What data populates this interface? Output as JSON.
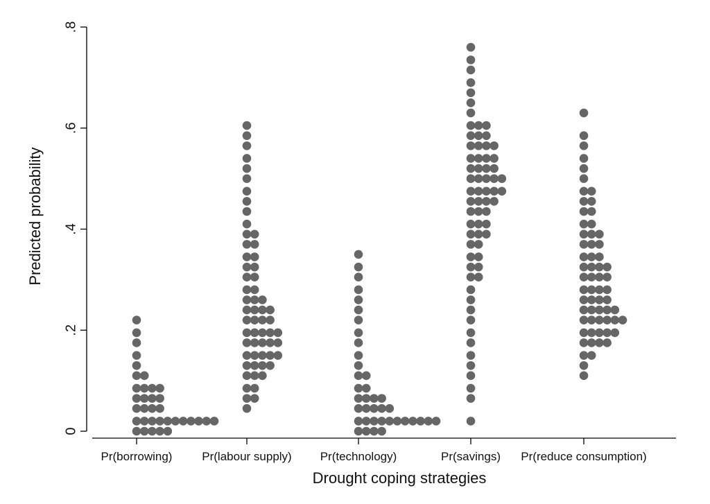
{
  "chart_data": {
    "type": "dotplot",
    "title": "",
    "xlabel": "Drought coping strategies",
    "ylabel": "Predicted probability",
    "ylim": [
      0,
      0.8
    ],
    "yticks": [
      0,
      0.2,
      0.4,
      0.6,
      0.8
    ],
    "ytick_labels": [
      "0",
      ".2",
      ".4",
      ".6",
      ".8"
    ],
    "grid": false,
    "legend": "none",
    "dot_color": "#666666",
    "categories": [
      "Pr(borrowing)",
      "Pr(labour supply)",
      "Pr(technology)",
      "Pr(savings)",
      "Pr(reduce consumption)"
    ],
    "series": [
      {
        "category": "Pr(borrowing)",
        "bins": [
          {
            "y": 0.0,
            "count": 5
          },
          {
            "y": 0.02,
            "count": 11
          },
          {
            "y": 0.045,
            "count": 4
          },
          {
            "y": 0.065,
            "count": 4
          },
          {
            "y": 0.085,
            "count": 4
          },
          {
            "y": 0.11,
            "count": 2
          },
          {
            "y": 0.13,
            "count": 1
          },
          {
            "y": 0.15,
            "count": 1
          },
          {
            "y": 0.175,
            "count": 1
          },
          {
            "y": 0.195,
            "count": 1
          },
          {
            "y": 0.22,
            "count": 1
          }
        ]
      },
      {
        "category": "Pr(labour supply)",
        "bins": [
          {
            "y": 0.045,
            "count": 1
          },
          {
            "y": 0.065,
            "count": 2
          },
          {
            "y": 0.085,
            "count": 2
          },
          {
            "y": 0.11,
            "count": 3
          },
          {
            "y": 0.13,
            "count": 4
          },
          {
            "y": 0.15,
            "count": 5
          },
          {
            "y": 0.175,
            "count": 5
          },
          {
            "y": 0.195,
            "count": 5
          },
          {
            "y": 0.22,
            "count": 4
          },
          {
            "y": 0.24,
            "count": 4
          },
          {
            "y": 0.26,
            "count": 3
          },
          {
            "y": 0.28,
            "count": 2
          },
          {
            "y": 0.305,
            "count": 2
          },
          {
            "y": 0.325,
            "count": 2
          },
          {
            "y": 0.345,
            "count": 2
          },
          {
            "y": 0.37,
            "count": 2
          },
          {
            "y": 0.39,
            "count": 2
          },
          {
            "y": 0.41,
            "count": 1
          },
          {
            "y": 0.435,
            "count": 1
          },
          {
            "y": 0.455,
            "count": 1
          },
          {
            "y": 0.475,
            "count": 1
          },
          {
            "y": 0.5,
            "count": 1
          },
          {
            "y": 0.52,
            "count": 1
          },
          {
            "y": 0.54,
            "count": 1
          },
          {
            "y": 0.565,
            "count": 1
          },
          {
            "y": 0.585,
            "count": 1
          },
          {
            "y": 0.605,
            "count": 1
          }
        ]
      },
      {
        "category": "Pr(technology)",
        "bins": [
          {
            "y": 0.0,
            "count": 4
          },
          {
            "y": 0.02,
            "count": 11
          },
          {
            "y": 0.045,
            "count": 5
          },
          {
            "y": 0.065,
            "count": 4
          },
          {
            "y": 0.085,
            "count": 2
          },
          {
            "y": 0.11,
            "count": 2
          },
          {
            "y": 0.13,
            "count": 1
          },
          {
            "y": 0.15,
            "count": 1
          },
          {
            "y": 0.175,
            "count": 1
          },
          {
            "y": 0.195,
            "count": 1
          },
          {
            "y": 0.22,
            "count": 1
          },
          {
            "y": 0.24,
            "count": 1
          },
          {
            "y": 0.26,
            "count": 1
          },
          {
            "y": 0.28,
            "count": 1
          },
          {
            "y": 0.305,
            "count": 1
          },
          {
            "y": 0.325,
            "count": 1
          },
          {
            "y": 0.35,
            "count": 1
          }
        ]
      },
      {
        "category": "Pr(savings)",
        "bins": [
          {
            "y": 0.02,
            "count": 1
          },
          {
            "y": 0.065,
            "count": 1
          },
          {
            "y": 0.085,
            "count": 1
          },
          {
            "y": 0.11,
            "count": 1
          },
          {
            "y": 0.13,
            "count": 1
          },
          {
            "y": 0.15,
            "count": 1
          },
          {
            "y": 0.175,
            "count": 1
          },
          {
            "y": 0.195,
            "count": 1
          },
          {
            "y": 0.22,
            "count": 1
          },
          {
            "y": 0.24,
            "count": 1
          },
          {
            "y": 0.26,
            "count": 1
          },
          {
            "y": 0.28,
            "count": 1
          },
          {
            "y": 0.305,
            "count": 2
          },
          {
            "y": 0.325,
            "count": 2
          },
          {
            "y": 0.345,
            "count": 2
          },
          {
            "y": 0.37,
            "count": 2
          },
          {
            "y": 0.39,
            "count": 3
          },
          {
            "y": 0.41,
            "count": 3
          },
          {
            "y": 0.435,
            "count": 3
          },
          {
            "y": 0.455,
            "count": 4
          },
          {
            "y": 0.475,
            "count": 5
          },
          {
            "y": 0.5,
            "count": 5
          },
          {
            "y": 0.52,
            "count": 4
          },
          {
            "y": 0.54,
            "count": 4
          },
          {
            "y": 0.565,
            "count": 4
          },
          {
            "y": 0.585,
            "count": 3
          },
          {
            "y": 0.605,
            "count": 3
          },
          {
            "y": 0.63,
            "count": 1
          },
          {
            "y": 0.65,
            "count": 1
          },
          {
            "y": 0.67,
            "count": 1
          },
          {
            "y": 0.69,
            "count": 1
          },
          {
            "y": 0.715,
            "count": 1
          },
          {
            "y": 0.735,
            "count": 1
          },
          {
            "y": 0.76,
            "count": 1
          }
        ]
      },
      {
        "category": "Pr(reduce consumption)",
        "bins": [
          {
            "y": 0.11,
            "count": 1
          },
          {
            "y": 0.13,
            "count": 1
          },
          {
            "y": 0.15,
            "count": 2
          },
          {
            "y": 0.175,
            "count": 4
          },
          {
            "y": 0.195,
            "count": 5
          },
          {
            "y": 0.22,
            "count": 6
          },
          {
            "y": 0.24,
            "count": 5
          },
          {
            "y": 0.26,
            "count": 4
          },
          {
            "y": 0.28,
            "count": 4
          },
          {
            "y": 0.305,
            "count": 4
          },
          {
            "y": 0.325,
            "count": 4
          },
          {
            "y": 0.345,
            "count": 3
          },
          {
            "y": 0.37,
            "count": 3
          },
          {
            "y": 0.39,
            "count": 3
          },
          {
            "y": 0.41,
            "count": 2
          },
          {
            "y": 0.435,
            "count": 2
          },
          {
            "y": 0.455,
            "count": 2
          },
          {
            "y": 0.475,
            "count": 2
          },
          {
            "y": 0.5,
            "count": 1
          },
          {
            "y": 0.52,
            "count": 1
          },
          {
            "y": 0.54,
            "count": 1
          },
          {
            "y": 0.565,
            "count": 1
          },
          {
            "y": 0.585,
            "count": 1
          },
          {
            "y": 0.63,
            "count": 1
          }
        ]
      }
    ]
  }
}
